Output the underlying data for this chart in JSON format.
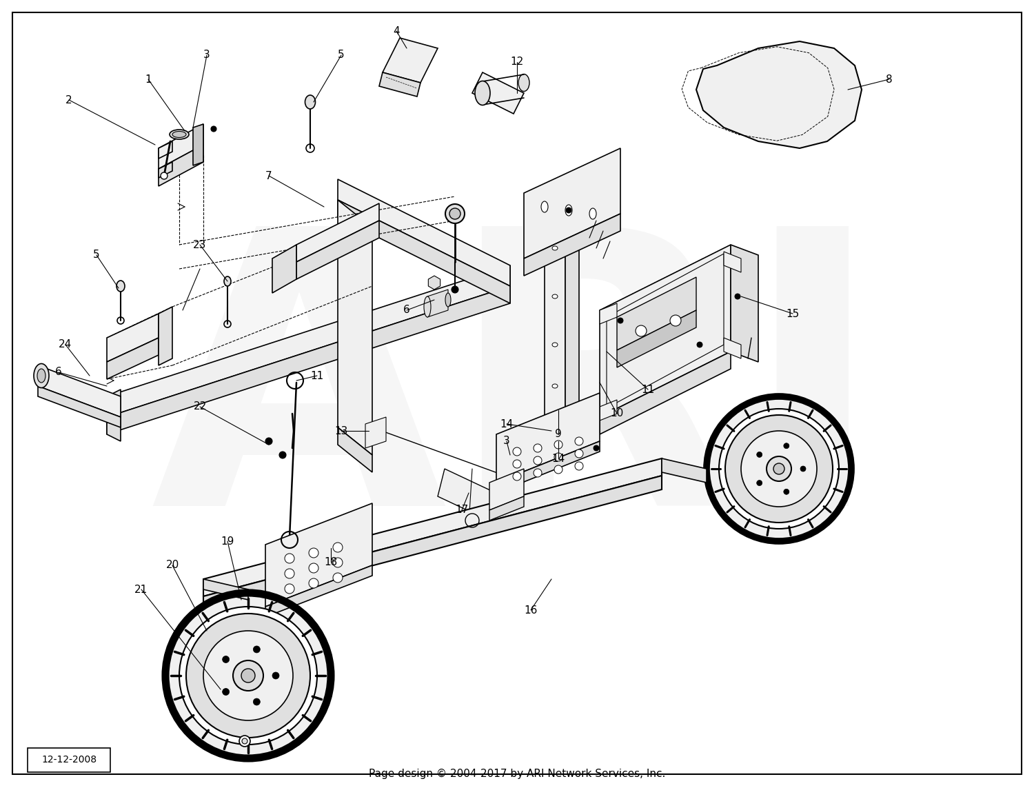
{
  "background_color": "#ffffff",
  "date_label": "12-12-2008",
  "footer_text": "Page design © 2004-2017 by ARI Network Services, Inc.",
  "watermark": "ARI",
  "watermark_alpha": 0.07,
  "line_color": "#000000",
  "part_color": "#000000",
  "fill_light": "#f0f0f0",
  "fill_mid": "#e0e0e0",
  "fill_dark": "#c8c8c8",
  "lw_main": 1.2,
  "lw_thin": 0.7,
  "lw_thick": 2.0
}
